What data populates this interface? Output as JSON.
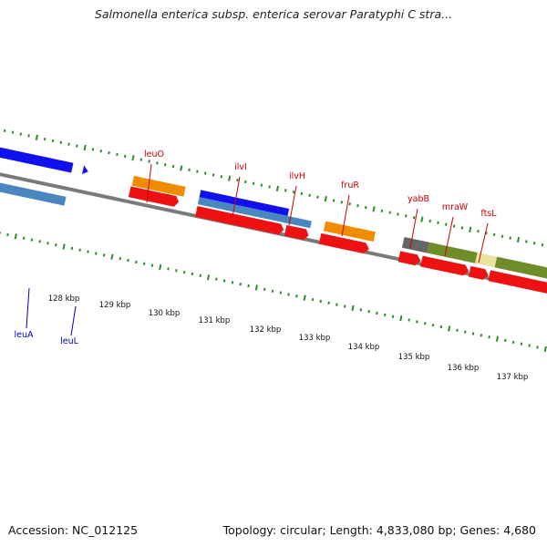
{
  "title": "Salmonella enterica subsp. enterica serovar Paratyphi C stra...",
  "footer": {
    "accession": "Accession: NC_012125",
    "summary": "Topology: circular; Length: 4,833,080 bp; Genes: 4,680"
  },
  "colors": {
    "backbone": "#7a7a7a",
    "dotted_track": "#2e8b2e",
    "red_feature": "#ee1111",
    "orange_feature": "#f08c00",
    "blue_feature": "#1010ee",
    "steelblue_feature": "#4a86c0",
    "olive_feature": "#6e8c28",
    "khaki_feature": "#eae3a0",
    "gray_feature": "#666666",
    "label_red": "#cc0000",
    "label_blue": "#0000bb"
  },
  "scale": {
    "labels": [
      "128 kbp",
      "129 kbp",
      "130 kbp",
      "131 kbp",
      "132 kbp",
      "133 kbp",
      "134 kbp",
      "135 kbp",
      "136 kbp",
      "137 kbp"
    ]
  },
  "genes": [
    {
      "name": "leuO",
      "strand": "top"
    },
    {
      "name": "ilvI",
      "strand": "top"
    },
    {
      "name": "ilvH",
      "strand": "top"
    },
    {
      "name": "fruR",
      "strand": "top"
    },
    {
      "name": "yabB",
      "strand": "top"
    },
    {
      "name": "mraW",
      "strand": "top"
    },
    {
      "name": "ftsL",
      "strand": "top"
    },
    {
      "name": "leuA",
      "strand": "bottom"
    },
    {
      "name": "leuL",
      "strand": "bottom"
    }
  ]
}
